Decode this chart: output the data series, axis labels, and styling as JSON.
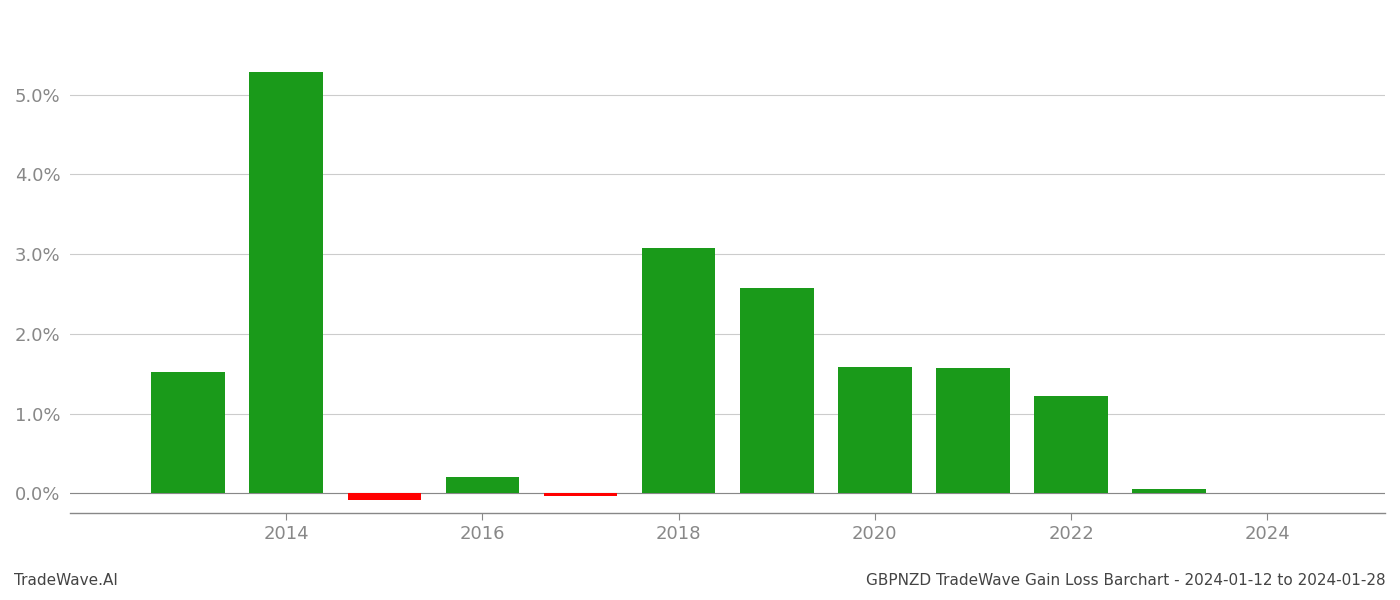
{
  "years": [
    2013,
    2014,
    2015,
    2016,
    2017,
    2018,
    2019,
    2020,
    2021,
    2022,
    2023
  ],
  "values": [
    0.0152,
    0.0528,
    -0.0008,
    0.002,
    -0.00035,
    0.0308,
    0.0258,
    0.0158,
    0.0157,
    0.0122,
    0.0005
  ],
  "bar_colors": [
    "#1a9a1a",
    "#1a9a1a",
    "#ff0000",
    "#1a9a1a",
    "#ff0000",
    "#1a9a1a",
    "#1a9a1a",
    "#1a9a1a",
    "#1a9a1a",
    "#1a9a1a",
    "#1a9a1a"
  ],
  "title": "GBPNZD TradeWave Gain Loss Barchart - 2024-01-12 to 2024-01-28",
  "footer_left": "TradeWave.AI",
  "xlim": [
    2011.8,
    2025.2
  ],
  "ylim": [
    -0.0025,
    0.06
  ],
  "xticks": [
    2014,
    2016,
    2018,
    2020,
    2022,
    2024
  ],
  "yticks": [
    0.0,
    0.01,
    0.02,
    0.03,
    0.04,
    0.05
  ],
  "ytick_labels": [
    "0.0%",
    "1.0%",
    "2.0%",
    "3.0%",
    "4.0%",
    "5.0%"
  ],
  "bar_width": 0.75,
  "background_color": "#ffffff",
  "grid_color": "#cccccc",
  "tick_color": "#888888",
  "title_fontsize": 11,
  "footer_fontsize": 11,
  "tick_fontsize": 13
}
